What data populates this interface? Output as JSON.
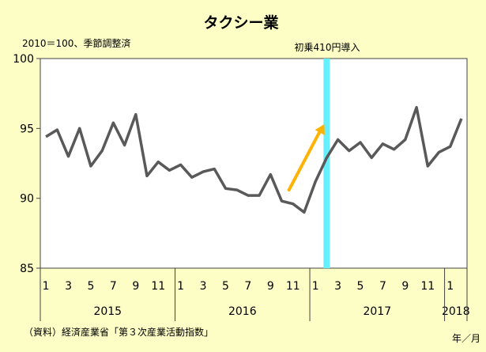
{
  "chart_data": {
    "type": "line",
    "title": "タクシー業",
    "subtitle": "2010＝100、季節調整済",
    "source": "（資料）経済産業省「第３次産業活動指数」",
    "x_unit_label": "年／月",
    "ylim": [
      85,
      100
    ],
    "y_ticks": [
      "85",
      "90",
      "95",
      "100"
    ],
    "month_labels": [
      "1",
      "3",
      "5",
      "7",
      "9",
      "11",
      "1",
      "3",
      "5",
      "7",
      "9",
      "11",
      "1",
      "3",
      "5",
      "7",
      "9",
      "11",
      "1"
    ],
    "year_labels": [
      "2015",
      "2016",
      "2017",
      "2018"
    ],
    "grid": false,
    "colors": {
      "line": "#595959",
      "marker": "#66f0ff",
      "arrow": "#ffb300",
      "background": "#fdfdc6"
    },
    "series": [
      {
        "x": [
          "2015-01",
          "2015-02",
          "2015-03",
          "2015-04",
          "2015-05",
          "2015-06",
          "2015-07",
          "2015-08",
          "2015-09",
          "2015-10",
          "2015-11",
          "2015-12",
          "2016-01",
          "2016-02",
          "2016-03",
          "2016-04",
          "2016-05",
          "2016-06",
          "2016-07",
          "2016-08",
          "2016-09",
          "2016-10",
          "2016-11",
          "2016-12",
          "2017-01",
          "2017-02",
          "2017-03",
          "2017-04",
          "2017-05",
          "2017-06",
          "2017-07",
          "2017-08",
          "2017-09",
          "2017-10",
          "2017-11",
          "2017-12",
          "2018-01",
          "2018-02"
        ],
        "values": [
          94.4,
          94.9,
          93.0,
          95.0,
          92.3,
          93.4,
          95.4,
          93.8,
          96.0,
          91.6,
          92.6,
          92.0,
          92.4,
          91.5,
          91.9,
          92.1,
          90.7,
          90.6,
          90.2,
          90.2,
          91.7,
          89.8,
          89.6,
          89.0,
          91.2,
          92.9,
          94.2,
          93.4,
          94.0,
          92.9,
          93.9,
          93.5,
          94.2,
          96.5,
          92.3,
          93.3,
          93.7,
          95.7
        ]
      }
    ],
    "annotation": {
      "label": "初乗410円導入",
      "at": "2017-02"
    }
  }
}
